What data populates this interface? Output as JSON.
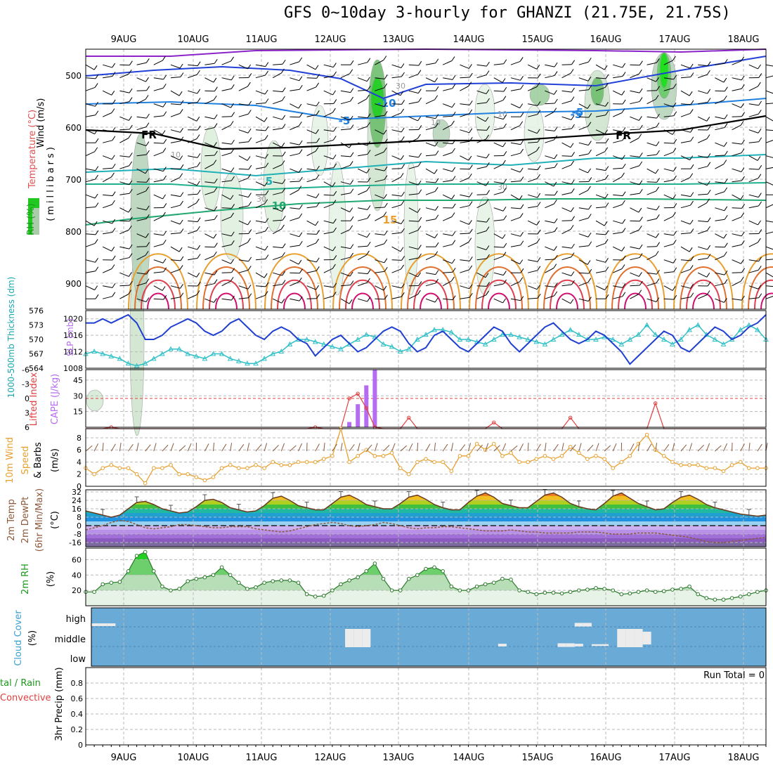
{
  "title": "GFS 0~10day 3-hourly for GHANZI (21.75E, 21.75S)",
  "dates": [
    "9AUG",
    "10AUG",
    "11AUG",
    "12AUG",
    "13AUG",
    "14AUG",
    "15AUG",
    "16AUG",
    "17AUG",
    "18AUG"
  ],
  "colors": {
    "slp": "#1f3fd1",
    "thickness": "#30c0c8",
    "cape": "#b46cf0",
    "lifted": "#e04040",
    "wind10m": "#e8a030",
    "dewpt": "#8c5a3c",
    "rh": "#3aa83a",
    "cloud": "#6aaad6",
    "temp_m": "#1f3fd1",
    "temp_neg": "#c060f0",
    "temp_pos": "#e8a030"
  },
  "panels": {
    "upper": {
      "ylabel_wind": "Wind (m/s)",
      "ylabel_temp": "Temperature (°C)",
      "ylabel_rh": "RH (%)",
      "ylabel_mb": "(millibars)",
      "levels": [
        500,
        600,
        700,
        800,
        900
      ],
      "isotherm_labels": [
        "-10",
        "-5",
        "FR",
        "5",
        "10",
        "15",
        "-5",
        "FR",
        "-5",
        "5",
        "-10"
      ],
      "rh_labels": [
        "30",
        "10",
        "10",
        "30",
        "30",
        "10"
      ]
    },
    "slp": {
      "ylabel_left": "1000-500mb Thickness (dm)",
      "ylabel_right": "SLP (mb)",
      "left_ticks": [
        "576",
        "573",
        "570",
        "567",
        "564"
      ],
      "right_ticks": [
        "1020",
        "1016",
        "1012",
        "1008"
      ]
    },
    "cape": {
      "ylabel_left": "Lifted Index",
      "ylabel_right": "CAPE (J/kg)",
      "left_ticks": [
        "-6",
        "-3",
        "0",
        "3",
        "6"
      ],
      "right_ticks": [
        "45",
        "30",
        "15"
      ]
    },
    "wind": {
      "ylabel_a": "10m Wind",
      "ylabel_b": "Speed",
      "ylabel_c": "& Barbs",
      "ylabel_unit": "(m/s)",
      "ticks": [
        "8",
        "6",
        "4",
        "2",
        "0"
      ]
    },
    "temp": {
      "ylabel_a": "2m Temp",
      "ylabel_b": "2m DewPt",
      "ylabel_c": "(6hr Min/Max)",
      "ylabel_unit": "(°C)",
      "ticks": [
        "32",
        "24",
        "16",
        "8",
        "0",
        "-8",
        "-16"
      ]
    },
    "rh": {
      "ylabel_a": "2m RH",
      "ylabel_unit": "(%)",
      "ticks": [
        "60",
        "40",
        "20"
      ]
    },
    "cloud": {
      "ylabel_a": "Cloud Cover",
      "ylabel_unit": "(%)",
      "rows": [
        "high",
        "middle",
        "low"
      ]
    },
    "precip": {
      "ylabel_a": "tal / Rain",
      "ylabel_b": "Convective",
      "ylabel_c": "3hr Precip (mm)",
      "ticks": [
        "0.8",
        "0.6",
        "0.4",
        "0.2",
        "0"
      ],
      "run_total": "Run Total = 0"
    }
  },
  "chart_data": {
    "type": "line",
    "x": [
      0,
      1,
      2,
      3,
      4,
      5,
      6,
      7,
      8,
      9,
      10,
      11,
      12,
      13,
      14,
      15,
      16,
      17,
      18,
      19,
      20,
      21,
      22,
      23,
      24,
      25,
      26,
      27,
      28,
      29,
      30,
      31,
      32,
      33,
      34,
      35,
      36,
      37,
      38,
      39,
      40,
      41,
      42,
      43,
      44,
      45,
      46,
      47,
      48,
      49,
      50,
      51,
      52,
      53,
      54,
      55,
      56,
      57,
      58,
      59,
      60,
      61,
      62,
      63,
      64,
      65,
      66,
      67,
      68,
      69,
      70,
      71,
      72,
      73,
      74,
      75,
      76,
      77,
      78,
      79,
      80
    ],
    "x_unit": "3-hour steps from 8 AUG 12Z",
    "series": [
      {
        "name": "SLP (mb)",
        "values": [
          1019,
          1019,
          1020,
          1019,
          1020,
          1021,
          1019,
          1015,
          1015,
          1016,
          1018,
          1019,
          1020,
          1019,
          1017,
          1016,
          1017,
          1019,
          1020,
          1018,
          1016,
          1015,
          1017,
          1018,
          1017,
          1015,
          1014,
          1011,
          1013,
          1015,
          1016,
          1014,
          1012,
          1013,
          1015,
          1017,
          1018,
          1017,
          1014,
          1012,
          1013,
          1016,
          1017,
          1015,
          1013,
          1012,
          1014,
          1016,
          1018,
          1017,
          1014,
          1012,
          1014,
          1016,
          1018,
          1019,
          1017,
          1015,
          1014,
          1015,
          1017,
          1016,
          1014,
          1012,
          1009,
          1011,
          1013,
          1015,
          1017,
          1016,
          1013,
          1012,
          1014,
          1016,
          1018,
          1017,
          1015,
          1016,
          1018,
          1019,
          1021
        ]
      },
      {
        "name": "1000-500mb Thickness (dm)",
        "values": [
          567,
          567.5,
          567,
          566.5,
          566,
          565,
          564.5,
          565,
          566,
          567,
          568,
          568,
          567,
          566.5,
          566,
          567,
          567,
          566,
          565.5,
          565,
          565,
          566,
          567,
          567.5,
          569,
          570,
          570,
          569.5,
          569,
          568.5,
          568,
          569,
          570,
          571,
          570.5,
          569,
          568.5,
          567.5,
          568,
          570,
          571,
          572,
          572,
          571.5,
          570,
          570,
          569.5,
          569,
          570,
          571,
          571,
          570.5,
          570,
          569.5,
          569,
          570,
          571,
          572,
          571,
          570,
          570,
          570.5,
          570,
          569,
          570,
          571,
          573,
          571,
          570,
          569,
          570,
          572,
          573,
          571,
          570,
          569,
          570,
          572,
          573,
          572,
          570
        ]
      },
      {
        "name": "Lifted Index",
        "values": [
          8,
          8,
          8,
          6,
          8,
          8,
          8,
          8,
          8,
          8,
          8,
          8,
          8,
          8,
          8,
          8,
          8,
          8,
          8,
          8,
          8,
          8,
          8,
          8,
          8,
          8,
          8,
          6,
          8,
          8,
          8,
          0,
          -1,
          2,
          6,
          8,
          8,
          8,
          4,
          8,
          8,
          8,
          8,
          8,
          8,
          8,
          8,
          8,
          5,
          8,
          8,
          8,
          8,
          8,
          8,
          8,
          8,
          4,
          8,
          8,
          8,
          8,
          8,
          8,
          8,
          8,
          8,
          1,
          8,
          8,
          8,
          8,
          8,
          8,
          8,
          8,
          8,
          8,
          8,
          8,
          8
        ]
      },
      {
        "name": "CAPE (J/kg)",
        "values": [
          0,
          0,
          0,
          0,
          0,
          0,
          0,
          0,
          0,
          0,
          0,
          0,
          0,
          0,
          0,
          0,
          0,
          0,
          0,
          0,
          0,
          0,
          0,
          0,
          0,
          0,
          0,
          0,
          0,
          0,
          0,
          5,
          22,
          40,
          55,
          0,
          0,
          0,
          0,
          0,
          0,
          0,
          0,
          0,
          0,
          0,
          0,
          0,
          0,
          0,
          0,
          0,
          0,
          0,
          0,
          0,
          0,
          0,
          0,
          0,
          0,
          0,
          0,
          0,
          0,
          0,
          0,
          0,
          0,
          0,
          0,
          0,
          0,
          0,
          0,
          0,
          0,
          0,
          0,
          0,
          0
        ]
      },
      {
        "name": "10m Wind Speed (m/s)",
        "values": [
          3,
          2,
          3,
          3.5,
          3,
          3,
          2,
          0.5,
          3,
          3,
          3.5,
          2,
          2,
          1.5,
          1,
          1.5,
          3,
          3.5,
          3,
          3,
          3.5,
          3,
          4,
          3.5,
          3.5,
          4,
          4,
          4,
          4.5,
          5,
          9.5,
          4,
          5,
          6,
          5,
          5,
          5.5,
          3,
          2,
          4,
          4.5,
          4,
          4,
          2.5,
          5,
          5,
          7,
          6,
          7,
          5,
          5.5,
          4,
          4,
          4.5,
          5,
          4.5,
          5,
          6.5,
          5.5,
          4.5,
          5,
          4.5,
          3,
          4,
          5,
          7,
          8.5,
          6,
          5,
          4,
          3.5,
          3.5,
          3.5,
          3,
          3,
          2.5,
          3.5,
          4,
          3,
          3,
          3
        ]
      },
      {
        "name": "2m Temp (°C)",
        "values": [
          14,
          12,
          10,
          8,
          10,
          16,
          22,
          23,
          20,
          16,
          14,
          12,
          13,
          18,
          24,
          25,
          22,
          17,
          15,
          13,
          14,
          19,
          26,
          28,
          24,
          19,
          17,
          15,
          15,
          21,
          27,
          29,
          25,
          20,
          18,
          16,
          16,
          21,
          27,
          29,
          25,
          20,
          17,
          15,
          15,
          22,
          28,
          31,
          27,
          21,
          19,
          17,
          17,
          23,
          29,
          31,
          27,
          21,
          18,
          16,
          15,
          21,
          28,
          31,
          26,
          21,
          18,
          15,
          16,
          22,
          27,
          29,
          25,
          20,
          17,
          15,
          13,
          11,
          10,
          9,
          10
        ]
      },
      {
        "name": "2m DewPt (°C)",
        "values": [
          -4,
          -2,
          0,
          3,
          5,
          4,
          1,
          -2,
          -3,
          -2,
          -1,
          1,
          1,
          0,
          -1,
          -2,
          -2,
          -1,
          -1,
          -1,
          -3,
          -4,
          -5,
          -6,
          -5,
          -3,
          -1,
          1,
          2,
          3,
          2,
          0,
          -1,
          0,
          1,
          3,
          2,
          0,
          -2,
          -3,
          -2,
          -2,
          -1,
          -1,
          -2,
          -3,
          -4,
          -5,
          -5,
          -5,
          -4,
          -5,
          -6,
          -6,
          -7,
          -7,
          -7,
          -7,
          -6,
          -6,
          -6,
          -7,
          -8,
          -8,
          -8,
          -7,
          -7,
          -7,
          -8,
          -9,
          -10,
          -11,
          -13,
          -15,
          -16,
          -16,
          -15,
          -14,
          -13,
          -12,
          -11
        ]
      },
      {
        "name": "2m RH (%)",
        "values": [
          18,
          18,
          28,
          30,
          31,
          45,
          65,
          70,
          45,
          25,
          20,
          22,
          32,
          35,
          37,
          40,
          50,
          40,
          30,
          22,
          24,
          30,
          32,
          33,
          33,
          30,
          15,
          12,
          13,
          20,
          28,
          33,
          37,
          45,
          55,
          35,
          20,
          20,
          35,
          40,
          48,
          50,
          45,
          25,
          20,
          20,
          25,
          28,
          30,
          35,
          34,
          20,
          18,
          15,
          17,
          17,
          16,
          18,
          20,
          21,
          23,
          22,
          20,
          15,
          16,
          18,
          20,
          18,
          19,
          21,
          22,
          25,
          15,
          10,
          8,
          8,
          10,
          12,
          15,
          18,
          20
        ]
      },
      {
        "name": "3hr Precip (mm)",
        "values": [
          0,
          0,
          0,
          0,
          0,
          0,
          0,
          0,
          0,
          0,
          0,
          0,
          0,
          0,
          0,
          0,
          0,
          0,
          0,
          0,
          0,
          0,
          0,
          0,
          0,
          0,
          0,
          0,
          0,
          0,
          0,
          0,
          0,
          0,
          0,
          0,
          0,
          0,
          0,
          0,
          0,
          0,
          0,
          0,
          0,
          0,
          0,
          0,
          0,
          0,
          0,
          0,
          0,
          0,
          0,
          0,
          0,
          0,
          0,
          0,
          0,
          0,
          0,
          0,
          0,
          0,
          0,
          0,
          0,
          0,
          0,
          0,
          0,
          0,
          0,
          0,
          0,
          0,
          0,
          0,
          0
        ]
      }
    ],
    "cloud_cover": {
      "high": [
        [
          1,
          15
        ],
        [
          2,
          15
        ],
        [
          3,
          15
        ],
        [
          58,
          20
        ],
        [
          59,
          20
        ]
      ],
      "middle": [
        [
          31,
          100
        ],
        [
          32,
          100
        ],
        [
          33,
          100
        ],
        [
          63,
          100
        ],
        [
          64,
          100
        ],
        [
          65,
          100
        ],
        [
          66,
          70
        ]
      ],
      "low": [
        [
          49,
          15
        ],
        [
          56,
          20
        ],
        [
          57,
          20
        ],
        [
          58,
          15
        ],
        [
          60,
          10
        ],
        [
          61,
          10
        ]
      ]
    },
    "upper_temperature_levels": [
      -10,
      -5,
      0,
      5,
      10,
      15,
      20,
      25,
      30
    ],
    "upper_pressure_range": [
      450,
      950
    ],
    "ylim_slp": [
      1008,
      1022
    ],
    "ylim_thickness": [
      564,
      576
    ],
    "ylim_cape": [
      0,
      55
    ],
    "ylim_lifted": [
      6,
      -6
    ],
    "ylim_wind": [
      0,
      9.5
    ],
    "ylim_temp": [
      -20,
      34
    ],
    "ylim_rh": [
      0,
      75
    ],
    "ylim_precip": [
      0,
      1
    ]
  }
}
